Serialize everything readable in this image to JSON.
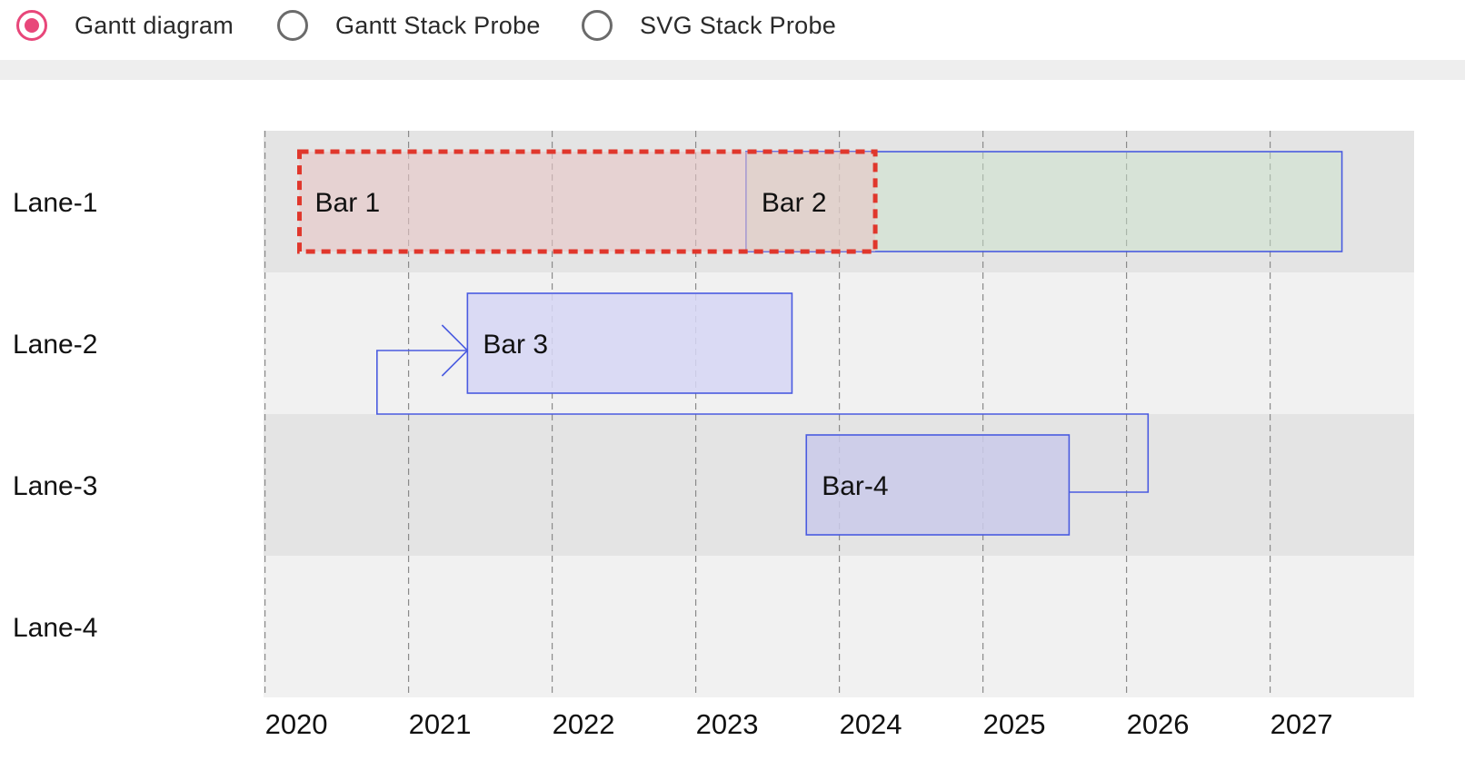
{
  "radio_options": [
    {
      "label": "Gantt diagram",
      "checked": true
    },
    {
      "label": "Gantt Stack Probe",
      "checked": false
    },
    {
      "label": "SVG Stack Probe",
      "checked": false
    }
  ],
  "colors": {
    "accent": "#e8477a",
    "lane_dark": "#e4e4e4",
    "lane_light": "#f1f1f1",
    "bar_stroke": "#4a5be0",
    "selection": "#e0372c"
  },
  "chart_data": {
    "type": "gantt",
    "lanes": [
      "Lane-1",
      "Lane-2",
      "Lane-3",
      "Lane-4"
    ],
    "x_ticks": [
      "2020",
      "2021",
      "2022",
      "2023",
      "2024",
      "2025",
      "2026",
      "2027"
    ],
    "xlim": [
      2019.99,
      2027.99
    ],
    "bars": [
      {
        "label": "Bar 1",
        "lane": 0,
        "start": 2020.24,
        "end": 2024.25,
        "fill": "#e8c6c6",
        "opacity": 0.6,
        "selected": true
      },
      {
        "label": "Bar 2",
        "lane": 0,
        "start": 2023.35,
        "end": 2027.5,
        "fill": "#c9e2c9",
        "opacity": 0.5,
        "selected": false
      },
      {
        "label": "Bar 3",
        "lane": 1,
        "start": 2021.41,
        "end": 2023.67,
        "fill": "#d6d6f4",
        "opacity": 0.85,
        "selected": false
      },
      {
        "label": "Bar-4",
        "lane": 2,
        "start": 2023.77,
        "end": 2025.6,
        "fill": "#cacaea",
        "opacity": 0.85,
        "selected": false
      }
    ],
    "dependencies": [
      {
        "from": "Bar-4",
        "to": "Bar 3"
      }
    ],
    "grid": true
  }
}
